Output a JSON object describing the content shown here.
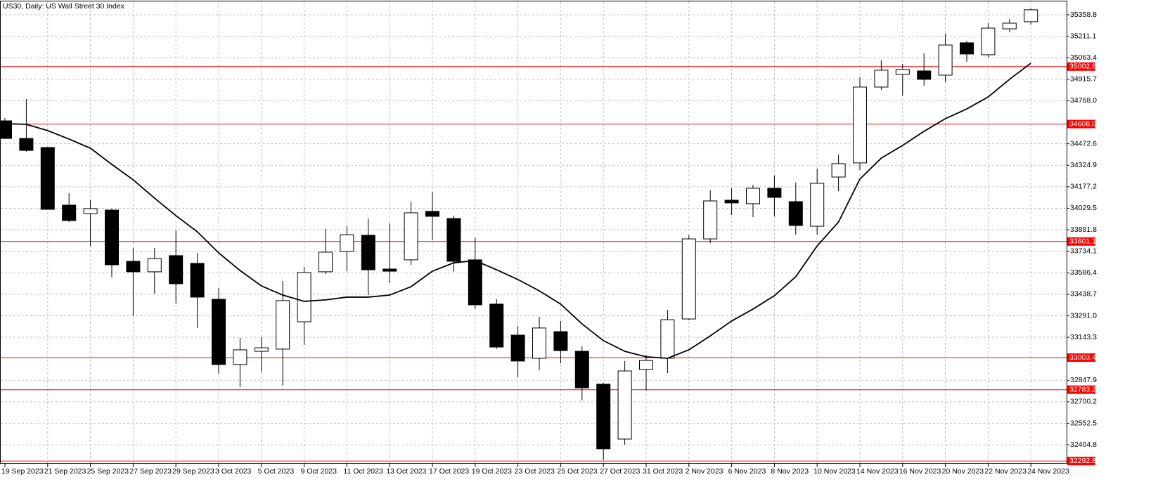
{
  "chart_data": {
    "type": "candlestick",
    "title": "US30, Daily:  US Wall Street 30 Index",
    "categories": [
      "19 Sep 2023",
      null,
      "21 Sep 2023",
      null,
      "25 Sep 2023",
      null,
      "27 Sep 2023",
      null,
      "29 Sep 2023",
      null,
      "3 Oct 2023",
      null,
      "5 Oct 2023",
      null,
      "9 Oct 2023",
      null,
      "11 Oct 2023",
      null,
      "13 Oct 2023",
      null,
      "17 Oct 2023",
      null,
      "19 Oct 2023",
      null,
      "23 Oct 2023",
      null,
      "25 Oct 2023",
      null,
      "27 Oct 2023",
      null,
      "31 Oct 2023",
      null,
      "2 Nov 2023",
      null,
      "6 Nov 2023",
      null,
      "8 Nov 2023",
      null,
      "10 Nov 2023",
      null,
      "14 Nov 2023",
      null,
      "16 Nov 2023",
      null,
      "20 Nov 2023",
      null,
      "22 Nov 2023",
      null,
      "24 Nov 2023"
    ],
    "open": [
      34630,
      34509,
      34447,
      34051,
      33993,
      34017,
      33665,
      33593,
      33704,
      33651,
      33404,
      32956,
      33047,
      33062,
      33250,
      33593,
      33733,
      33844,
      33612,
      33675,
      34008,
      33959,
      33675,
      33371,
      33158,
      32999,
      33182,
      33047,
      32821,
      32444,
      32922,
      32999,
      33269,
      33819,
      34085,
      34061,
      34167,
      34075,
      33906,
      34244,
      34341,
      34862,
      34949,
      34973,
      34944,
      35166,
      35084,
      35262,
      35311
    ],
    "high": [
      34649,
      34780,
      34450,
      34133,
      34085,
      34027,
      33757,
      33757,
      33877,
      33723,
      33482,
      33139,
      33144,
      33530,
      33626,
      33887,
      33906,
      33959,
      33926,
      34075,
      34143,
      33979,
      33829,
      33404,
      33221,
      33284,
      33255,
      33081,
      32830,
      32980,
      33023,
      33332,
      33844,
      34152,
      34167,
      34191,
      34254,
      34206,
      34302,
      34399,
      34929,
      35045,
      35021,
      35094,
      35229,
      35180,
      35301,
      35330,
      35402
    ],
    "low": [
      34505,
      34418,
      34020,
      33935,
      33771,
      33554,
      33289,
      33443,
      33375,
      33207,
      32893,
      32801,
      32903,
      32811,
      33091,
      33578,
      33597,
      33433,
      33515,
      33641,
      33810,
      33593,
      33337,
      33062,
      32869,
      32917,
      32965,
      32709,
      32299,
      32405,
      32777,
      32898,
      33260,
      33790,
      33983,
      33969,
      33974,
      33848,
      33848,
      34148,
      34292,
      34843,
      34804,
      34872,
      34896,
      35036,
      35065,
      35238,
      35291
    ],
    "close": [
      34509,
      34427,
      34022,
      33945,
      34027,
      33641,
      33593,
      33684,
      33511,
      33419,
      32956,
      33057,
      33071,
      33395,
      33588,
      33728,
      33848,
      33607,
      33597,
      33998,
      33974,
      33665,
      33366,
      33076,
      32980,
      33207,
      33052,
      32796,
      32377,
      32912,
      32984,
      33264,
      33819,
      34080,
      34066,
      34167,
      34104,
      33911,
      34201,
      34336,
      34862,
      34978,
      34983,
      34915,
      35151,
      35089,
      35267,
      35301,
      35393
    ],
    "ma": [
      34611,
      34606,
      34563,
      34505,
      34442,
      34331,
      34225,
      34099,
      33979,
      33868,
      33723,
      33602,
      33496,
      33433,
      33390,
      33400,
      33419,
      33419,
      33433,
      33491,
      33597,
      33655,
      33670,
      33607,
      33540,
      33462,
      33371,
      33235,
      33120,
      33047,
      33009,
      32999,
      33057,
      33153,
      33255,
      33337,
      33429,
      33559,
      33771,
      33935,
      34230,
      34374,
      34461,
      34558,
      34645,
      34712,
      34794,
      34915,
      35026
    ],
    "up_color": "#ffffff",
    "down_color": "#000000",
    "ma_color": "#000000",
    "hline_color": "#ff0000",
    "hlines": [
      35002.6,
      {
        "value": 34608,
        "label": "34608.0"
      },
      33801.1,
      33003.4,
      32783.2,
      32292.8
    ],
    "ylim": [
      32275,
      35436
    ],
    "yticks": [
      35358.8,
      35211.1,
      35063.4,
      34915.7,
      {
        "value": 34768,
        "label": "34768.0"
      },
      34472.6,
      34324.9,
      34177.2,
      34029.5,
      33881.8,
      33734.1,
      33586.4,
      33438.7,
      {
        "value": 33291,
        "label": "33291.0"
      },
      33143.3,
      32847.9,
      32700.2,
      32552.5,
      32404.8
    ],
    "grid": true
  }
}
